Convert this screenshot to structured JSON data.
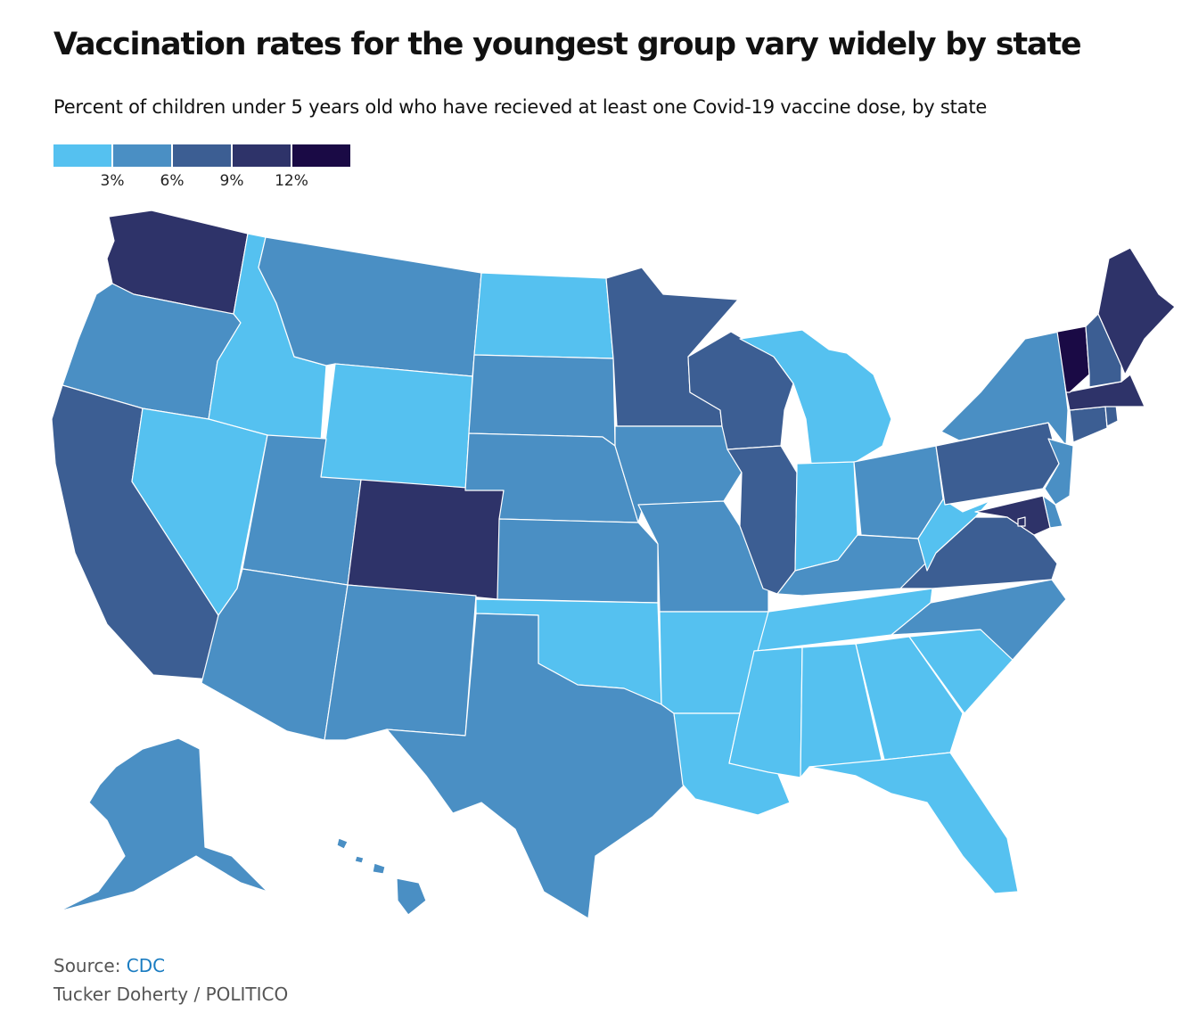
{
  "header": {
    "title": "Vaccination rates for the youngest group vary widely by state",
    "subtitle": "Percent of children under 5 years old who have recieved at least one Covid-19 vaccine dose, by state"
  },
  "legend": {
    "colors": [
      "#55c1f0",
      "#4a8fc4",
      "#3c5e93",
      "#2e3369",
      "#1a0a45"
    ],
    "ticks": [
      "3%",
      "6%",
      "9%",
      "12%"
    ],
    "tick_values": [
      3,
      6,
      9,
      12
    ]
  },
  "colors": {
    "bin0": "#55c1f0",
    "bin1": "#4a8fc4",
    "bin2": "#3c5e93",
    "bin3": "#2e3369",
    "bin4": "#1a0a45"
  },
  "states": {
    "WA": 3,
    "OR": 1,
    "CA": 2,
    "ID": 0,
    "NV": 0,
    "MT": 1,
    "WY": 0,
    "UT": 1,
    "AZ": 1,
    "CO": 3,
    "NM": 1,
    "ND": 0,
    "SD": 1,
    "NE": 1,
    "KS": 1,
    "OK": 0,
    "TX": 1,
    "MN": 2,
    "IA": 1,
    "MO": 1,
    "AR": 0,
    "LA": 0,
    "WI": 2,
    "IL": 2,
    "MI": 0,
    "IN": 0,
    "OH": 1,
    "KY": 1,
    "TN": 0,
    "MS": 0,
    "AL": 0,
    "GA": 0,
    "FL": 0,
    "SC": 0,
    "NC": 1,
    "VA": 2,
    "WV": 0,
    "PA": 2,
    "NY": 1,
    "NJ": 1,
    "DE": 1,
    "MD": 3,
    "DC": 3,
    "CT": 2,
    "RI": 2,
    "MA": 3,
    "VT": 4,
    "NH": 2,
    "ME": 3,
    "AK": 1,
    "HI": 1
  },
  "footer": {
    "source_label": "Source:",
    "source_link": "CDC",
    "credit": "Tucker Doherty / POLITICO"
  }
}
